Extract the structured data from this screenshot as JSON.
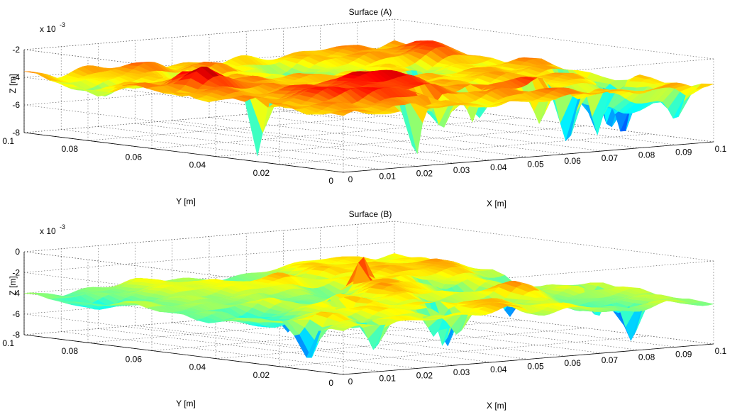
{
  "chart_data": [
    {
      "type": "surface",
      "title": "Surface (A)",
      "xlabel": "X [m]",
      "ylabel": "Y [m]",
      "zlabel": "Z [m]",
      "z_exponent_label": "x 10",
      "z_exponent_power": "-3",
      "xlim": [
        0,
        0.1
      ],
      "ylim": [
        0,
        0.1
      ],
      "zlim": [
        -8,
        -2
      ],
      "x_ticks": [
        "0",
        "0.01",
        "0.02",
        "0.03",
        "0.04",
        "0.05",
        "0.06",
        "0.07",
        "0.08",
        "0.09",
        "0.1"
      ],
      "y_ticks": [
        "0",
        "0.02",
        "0.04",
        "0.06",
        "0.08",
        "0.1"
      ],
      "z_ticks": [
        "-8",
        "-6",
        "-4",
        "-2"
      ],
      "grid": true,
      "colormap": "jet",
      "mean_z": -3.8,
      "min_z": -7.6,
      "max_z": -2.2
    },
    {
      "type": "surface",
      "title": "Surface (B)",
      "xlabel": "X [m]",
      "ylabel": "Y [m]",
      "zlabel": "Z [m]",
      "z_exponent_label": "x 10",
      "z_exponent_power": "-3",
      "xlim": [
        0,
        0.1
      ],
      "ylim": [
        0,
        0.1
      ],
      "zlim": [
        -8,
        0
      ],
      "x_ticks": [
        "0",
        "0.01",
        "0.02",
        "0.03",
        "0.04",
        "0.05",
        "0.06",
        "0.07",
        "0.08",
        "0.09",
        "0.1"
      ],
      "y_ticks": [
        "0",
        "0.02",
        "0.04",
        "0.06",
        "0.08",
        "0.1"
      ],
      "z_ticks": [
        "-8",
        "-6",
        "-4",
        "-2",
        "0"
      ],
      "grid": true,
      "colormap": "jet",
      "mean_z": -3.5,
      "min_z": -7.8,
      "max_z": -0.5
    }
  ]
}
